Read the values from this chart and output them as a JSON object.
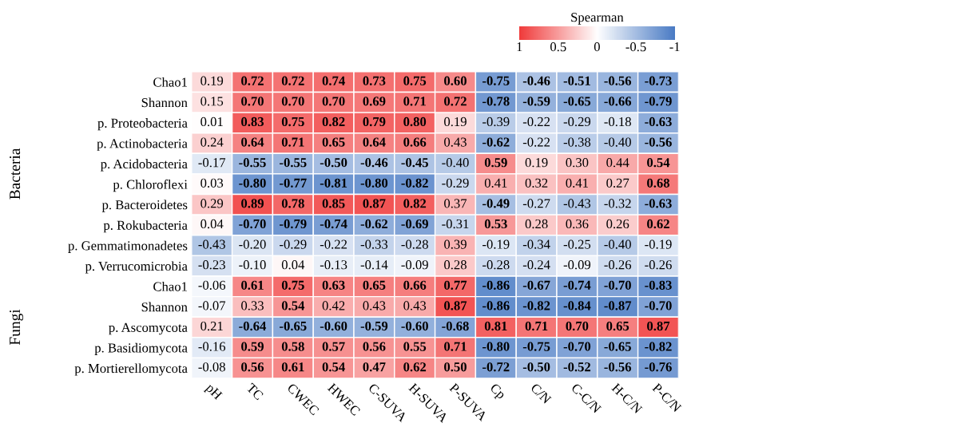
{
  "chart_data": {
    "type": "heatmap",
    "clabel": "Spearman",
    "categories": [
      "pH",
      "TC",
      "CWEC",
      "HWEC",
      "C-SUVA",
      "H-SUVA",
      "P-SUVA",
      "Cp",
      "C/N",
      "C-C/N",
      "H-C/N",
      "P-C/N"
    ],
    "y_categories": [
      "Chao1",
      "Shannon",
      "p. Proteobacteria",
      "p. Actinobacteria",
      "p. Acidobacteria",
      "p. Chloroflexi",
      "p. Bacteroidetes",
      "p. Rokubacteria",
      "p. Gemmatimonadetes",
      "p. Verrucomicrobia",
      "Chao1",
      "Shannon",
      "p. Ascomycota",
      "p. Basidiomycota",
      "p. Mortierellomycota"
    ],
    "cells": [
      [
        0.19,
        0.72,
        0.72,
        0.74,
        0.73,
        0.75,
        0.6,
        -0.75,
        -0.46,
        -0.51,
        -0.56,
        -0.73
      ],
      [
        0.15,
        0.7,
        0.7,
        0.7,
        0.69,
        0.71,
        0.72,
        -0.78,
        -0.59,
        -0.65,
        -0.66,
        -0.79
      ],
      [
        0.01,
        0.83,
        0.75,
        0.82,
        0.79,
        0.8,
        0.19,
        -0.39,
        -0.22,
        -0.29,
        -0.18,
        -0.63
      ],
      [
        0.24,
        0.64,
        0.71,
        0.65,
        0.64,
        0.66,
        0.43,
        -0.62,
        -0.22,
        -0.38,
        -0.4,
        -0.56
      ],
      [
        -0.17,
        -0.55,
        -0.55,
        -0.5,
        -0.46,
        -0.45,
        -0.4,
        0.59,
        0.19,
        0.3,
        0.44,
        0.54
      ],
      [
        0.03,
        -0.8,
        -0.77,
        -0.81,
        -0.8,
        -0.82,
        -0.29,
        0.41,
        0.32,
        0.41,
        0.27,
        0.68
      ],
      [
        0.29,
        0.89,
        0.78,
        0.85,
        0.87,
        0.82,
        0.37,
        -0.49,
        -0.27,
        -0.43,
        -0.32,
        -0.63
      ],
      [
        0.04,
        -0.7,
        -0.79,
        -0.74,
        -0.62,
        -0.69,
        -0.31,
        0.53,
        0.28,
        0.36,
        0.26,
        0.62
      ],
      [
        -0.43,
        -0.2,
        -0.29,
        -0.22,
        -0.33,
        -0.28,
        0.39,
        -0.19,
        -0.34,
        -0.25,
        -0.4,
        -0.19
      ],
      [
        -0.23,
        -0.1,
        0.04,
        -0.13,
        -0.14,
        -0.09,
        0.28,
        -0.28,
        -0.24,
        -0.09,
        -0.26,
        -0.26
      ],
      [
        -0.06,
        0.61,
        0.75,
        0.63,
        0.65,
        0.66,
        0.77,
        -0.86,
        -0.67,
        -0.74,
        -0.7,
        -0.83
      ],
      [
        -0.07,
        0.33,
        0.54,
        0.42,
        0.43,
        0.43,
        0.87,
        -0.86,
        -0.82,
        -0.84,
        -0.87,
        -0.7
      ],
      [
        0.21,
        -0.64,
        -0.65,
        -0.6,
        -0.59,
        -0.6,
        -0.68,
        0.81,
        0.71,
        0.7,
        0.65,
        0.87
      ],
      [
        -0.16,
        0.59,
        0.58,
        0.57,
        0.56,
        0.55,
        0.71,
        -0.8,
        -0.75,
        -0.7,
        -0.65,
        -0.82
      ],
      [
        -0.08,
        0.56,
        0.61,
        0.54,
        0.47,
        0.62,
        0.5,
        -0.72,
        -0.5,
        -0.52,
        -0.56,
        -0.76
      ]
    ],
    "cell_labels": [
      [
        "0.19",
        "0.72",
        "0.72",
        "0.74",
        "0.73",
        "0.75",
        "0.60",
        "-0.75",
        "-0.46",
        "-0.51",
        "-0.56",
        "-0.73"
      ],
      [
        "0.15",
        "0.70",
        "0.70",
        "0.70",
        "0.69",
        "0.71",
        "0.72",
        "-0.78",
        "-0.59",
        "-0.65",
        "-0.66",
        "-0.79"
      ],
      [
        "0.01",
        "0.83",
        "0.75",
        "0.82",
        "0.79",
        "0.80",
        "0.19",
        "-0.39",
        "-0.22",
        "-0.29",
        "-0.18",
        "-0.63"
      ],
      [
        "0.24",
        "0.64",
        "0.71",
        "0.65",
        "0.64",
        "0.66",
        "0.43",
        "-0.62",
        "-0.22",
        "-0.38",
        "-0.40",
        "-0.56"
      ],
      [
        "-0.17",
        "-0.55",
        "-0.55",
        "-0.50",
        "-0.46",
        "-0.45",
        "-0.40",
        "0.59",
        "0.19",
        "0.30",
        "0.44",
        "0.54"
      ],
      [
        "0.03",
        "-0.80",
        "-0.77",
        "-0.81",
        "-0.80",
        "-0.82",
        "-0.29",
        "0.41",
        "0.32",
        "0.41",
        "0.27",
        "0.68"
      ],
      [
        "0.29",
        "0.89",
        "0.78",
        "0.85",
        "0.87",
        "0.82",
        "0.37",
        "-0.49",
        "-0.27",
        "-0.43",
        "-0.32",
        "-0.63"
      ],
      [
        "0.04",
        "-0.70",
        "-0.79",
        "-0.74",
        "-0.62",
        "-0.69",
        "-0.31",
        "0.53",
        "0.28",
        "0.36",
        "0.26",
        "0.62"
      ],
      [
        "-0.43",
        "-0.20",
        "-0.29",
        "-0.22",
        "-0.33",
        "-0.28",
        "0.39",
        "-0.19",
        "-0.34",
        "-0.25",
        "-0.40",
        "-0.19"
      ],
      [
        "-0.23",
        "-0.10",
        "0.04",
        "-0.13",
        "-0.14",
        "-0.09",
        "0.28",
        "-0.28",
        "-0.24",
        "-0.09",
        "-0.26",
        "-0.26"
      ],
      [
        "-0.06",
        "0.61",
        "0.75",
        "0.63",
        "0.65",
        "0.66",
        "0.77",
        "-0.86",
        "-0.67",
        "-0.74",
        "-0.70",
        "-0.83"
      ],
      [
        "-0.07",
        "0.33",
        "0.54",
        "0.42",
        "0.43",
        "0.43",
        "0.87",
        "-0.86",
        "-0.82",
        "-0.84",
        "-0.87",
        "-0.70"
      ],
      [
        "0.21",
        "-0.64",
        "-0.65",
        "-0.60",
        "-0.59",
        "-0.60",
        "-0.68",
        "0.81",
        "0.71",
        "0.70",
        "0.65",
        "0.87"
      ],
      [
        "-0.16",
        "0.59",
        "0.58",
        "0.57",
        "0.56",
        "0.55",
        "0.71",
        "-0.80",
        "-0.75",
        "-0.70",
        "-0.65",
        "-0.82"
      ],
      [
        "-0.08",
        "0.56",
        "0.61",
        "0.54",
        "0.47",
        "0.62",
        "0.50",
        "-0.72",
        "-0.50",
        "-0.52",
        "-0.56",
        "-0.76"
      ]
    ],
    "clim": [
      1,
      -1
    ],
    "cticks": [
      1,
      0.5,
      0,
      -0.5,
      -1
    ],
    "annotations": [
      "Bacteria",
      "Fungi"
    ]
  }
}
